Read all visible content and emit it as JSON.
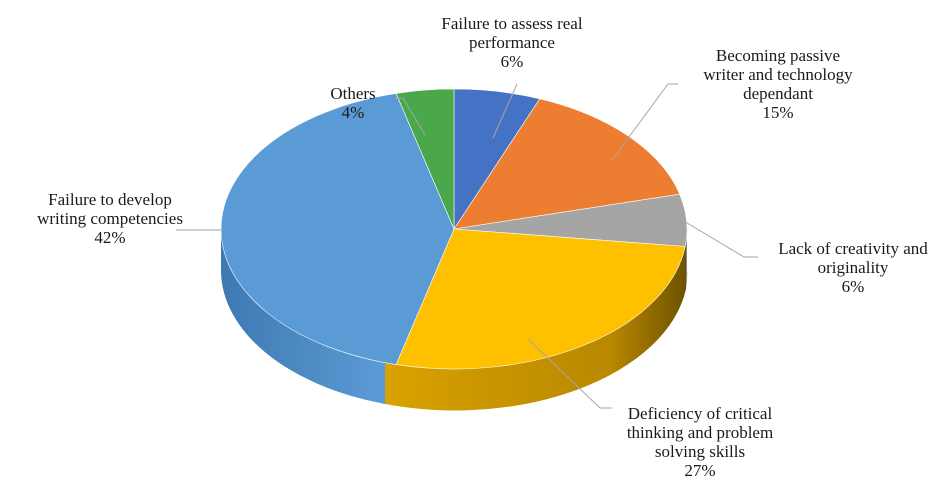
{
  "chart_data": {
    "type": "pie",
    "title": "",
    "style": "3d",
    "slices": [
      {
        "label": "Failure to assess real performance",
        "label_lines": [
          "Failure to assess real",
          "performance"
        ],
        "value": 6,
        "value_label": "6%",
        "color": "#4472c4"
      },
      {
        "label": "Becoming passive writer and technology dependant",
        "label_lines": [
          "Becoming passive",
          "writer and technology",
          "dependant"
        ],
        "value": 15,
        "value_label": "15%",
        "color": "#ed7d31"
      },
      {
        "label": "Lack of creativity and originality",
        "label_lines": [
          "Lack of creativity and",
          "originality"
        ],
        "value": 6,
        "value_label": "6%",
        "color": "#a5a5a5"
      },
      {
        "label": "Deficiency of critical thinking and problem solving skills",
        "label_lines": [
          "Deficiency of critical",
          "thinking and problem",
          "solving skills"
        ],
        "value": 27,
        "value_label": "27%",
        "color": "#ffc000"
      },
      {
        "label": "Failure to develop writing competencies",
        "label_lines": [
          "Failure to develop",
          "writing competencies"
        ],
        "value": 42,
        "value_label": "42%",
        "color": "#5b9bd5"
      },
      {
        "label": "Others",
        "label_lines": [
          "Others"
        ],
        "value": 4,
        "value_label": "4%",
        "color": "#4aa74a"
      }
    ]
  }
}
